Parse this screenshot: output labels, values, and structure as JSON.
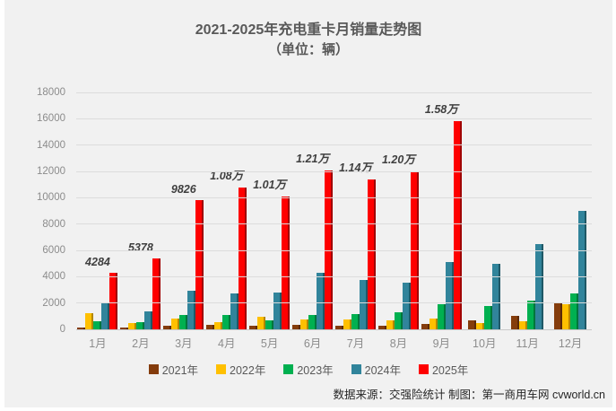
{
  "header": {
    "title": "2021-2025年充电重卡月销量走势图",
    "subtitle": "（单位：辆）"
  },
  "footer": {
    "credit": "数据来源：交强险统计 制图：第一商用车网 cvworld.cn"
  },
  "chart_data": {
    "type": "bar",
    "title": "2021-2025年充电重卡月销量走势图",
    "subtitle": "（单位：辆）",
    "categories": [
      "1月",
      "2月",
      "3月",
      "4月",
      "5月",
      "6月",
      "7月",
      "8月",
      "9月",
      "10月",
      "11月",
      "12月"
    ],
    "series": [
      {
        "name": "2021年",
        "color": "#843C0C",
        "edge_color": "#5A2908",
        "values": [
          150,
          120,
          300,
          350,
          300,
          350,
          300,
          250,
          400,
          700,
          1000,
          2000
        ]
      },
      {
        "name": "2022年",
        "color": "#FFC000",
        "edge_color": "#B38600",
        "values": [
          1200,
          470,
          800,
          540,
          940,
          740,
          740,
          670,
          800,
          450,
          600,
          1900
        ]
      },
      {
        "name": "2023年",
        "color": "#00B050",
        "edge_color": "#00763B",
        "values": [
          600,
          540,
          1070,
          1070,
          670,
          1070,
          1140,
          1280,
          1880,
          1800,
          2200,
          2700
        ]
      },
      {
        "name": "2024年",
        "color": "#31849B",
        "edge_color": "#1F5866",
        "values": [
          2000,
          1340,
          2950,
          2750,
          2820,
          4300,
          3760,
          3560,
          5100,
          5000,
          6500,
          9000
        ]
      },
      {
        "name": "2025年",
        "color": "#FE0000",
        "edge_color": "#A00000",
        "values": [
          4284,
          5378,
          9826,
          10800,
          10100,
          12100,
          11400,
          12000,
          15800,
          null,
          null,
          null
        ]
      }
    ],
    "data_labels": [
      "4284",
      "5378",
      "9826",
      "1.08万",
      "1.01万",
      "1.21万",
      "1.14万",
      "1.20万",
      "1.58万",
      null,
      null,
      null
    ],
    "data_label_series": "2025年",
    "ylim": [
      0,
      18000
    ],
    "ytick_step": 2000,
    "grid": true,
    "legend_position": "bottom",
    "background_color": "#F1F1F1",
    "gridline_color": "#DCDCDC"
  }
}
